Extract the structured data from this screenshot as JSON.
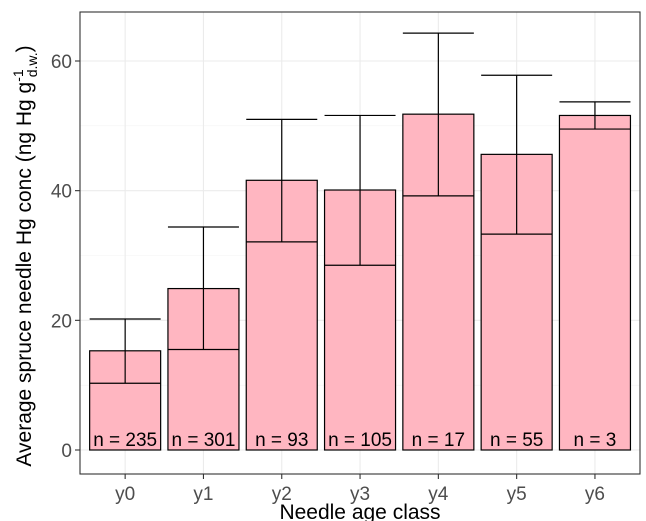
{
  "chart_data": {
    "type": "bar",
    "xlabel": "Needle age class",
    "ylabel": {
      "main": "Average spruce needle Hg conc  (ng Hg g",
      "subscript": "d.w.",
      "after_subscript": ")",
      "superscript": "-1"
    },
    "categories": [
      "y0",
      "y1",
      "y2",
      "y3",
      "y4",
      "y5",
      "y6"
    ],
    "values": [
      15.3,
      24.9,
      41.6,
      40.1,
      51.8,
      45.6,
      51.6
    ],
    "error_low": [
      10.3,
      15.5,
      32.1,
      28.5,
      39.2,
      33.3,
      49.5
    ],
    "error_high": [
      20.2,
      34.4,
      51.0,
      51.6,
      64.3,
      57.8,
      53.7
    ],
    "n_labels": [
      "n = 235",
      "n = 301",
      "n = 93",
      "n = 105",
      "n = 17",
      "n = 55",
      "n = 3"
    ],
    "yticks": [
      0,
      20,
      40,
      60
    ],
    "ylim": [
      0,
      67
    ],
    "grid": true,
    "colors": {
      "bar_fill": "#ffb6c1",
      "bar_stroke": "#000000",
      "grid": "#ebebeb",
      "axis": "#333333"
    }
  }
}
